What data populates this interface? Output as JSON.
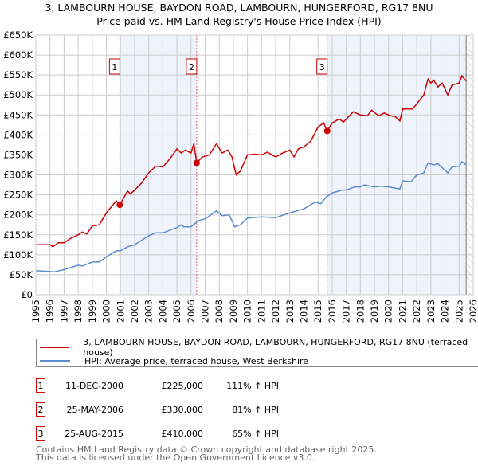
{
  "title": "3, LAMBOURN HOUSE, BAYDON ROAD, LAMBOURN, HUNGERFORD, RG17 8NU",
  "subtitle": "Price paid vs. HM Land Registry's House Price Index (HPI)",
  "colors": {
    "property": "#cc0000",
    "hpi": "#5b8bd0",
    "shade": "#eef3fc",
    "marker": "#cc0000"
  },
  "chart_data": {
    "type": "line",
    "xlim": [
      1995,
      2026
    ],
    "ylim": [
      0,
      650000
    ],
    "x_ticks": [
      "1995",
      "1996",
      "1997",
      "1998",
      "1999",
      "2000",
      "2001",
      "2002",
      "2003",
      "2004",
      "2005",
      "2006",
      "2007",
      "2008",
      "2009",
      "2010",
      "2011",
      "2012",
      "2013",
      "2014",
      "2015",
      "2016",
      "2017",
      "2018",
      "2019",
      "2020",
      "2021",
      "2022",
      "2023",
      "2024",
      "2025",
      "2026"
    ],
    "y_ticks": [
      {
        "v": 0,
        "label": "£0"
      },
      {
        "v": 50000,
        "label": "£50K"
      },
      {
        "v": 100000,
        "label": "£100K"
      },
      {
        "v": 150000,
        "label": "£150K"
      },
      {
        "v": 200000,
        "label": "£200K"
      },
      {
        "v": 250000,
        "label": "£250K"
      },
      {
        "v": 300000,
        "label": "£300K"
      },
      {
        "v": 350000,
        "label": "£350K"
      },
      {
        "v": 400000,
        "label": "£400K"
      },
      {
        "v": 450000,
        "label": "£450K"
      },
      {
        "v": 500000,
        "label": "£500K"
      },
      {
        "v": 550000,
        "label": "£550K"
      },
      {
        "v": 600000,
        "label": "£600K"
      },
      {
        "v": 650000,
        "label": "£650K"
      }
    ],
    "series": [
      {
        "name": "3, LAMBOURN HOUSE, BAYDON ROAD, LAMBOURN, HUNGERFORD, RG17 8NU (terraced house)",
        "points": [
          [
            1995,
            125000
          ],
          [
            1996,
            125000
          ],
          [
            1996.2,
            120000
          ],
          [
            1996.6,
            130000
          ],
          [
            1997,
            130000
          ],
          [
            1997.5,
            142000
          ],
          [
            1998,
            150000
          ],
          [
            1998.3,
            157000
          ],
          [
            1998.6,
            152000
          ],
          [
            1999,
            172000
          ],
          [
            1999.5,
            175000
          ],
          [
            2000,
            205000
          ],
          [
            2000.7,
            235000
          ],
          [
            2000.95,
            225000
          ],
          [
            2001.5,
            260000
          ],
          [
            2001.7,
            252000
          ],
          [
            2002,
            262000
          ],
          [
            2002.5,
            280000
          ],
          [
            2003,
            305000
          ],
          [
            2003.5,
            322000
          ],
          [
            2004,
            320000
          ],
          [
            2004.5,
            340000
          ],
          [
            2005,
            365000
          ],
          [
            2005.3,
            355000
          ],
          [
            2005.6,
            362000
          ],
          [
            2006,
            355000
          ],
          [
            2006.2,
            378000
          ],
          [
            2006.4,
            330000
          ],
          [
            2006.8,
            345000
          ],
          [
            2007.3,
            350000
          ],
          [
            2007.8,
            378000
          ],
          [
            2008.2,
            355000
          ],
          [
            2008.6,
            362000
          ],
          [
            2008.9,
            345000
          ],
          [
            2009.2,
            300000
          ],
          [
            2009.5,
            310000
          ],
          [
            2010,
            350000
          ],
          [
            2010.5,
            352000
          ],
          [
            2011,
            350000
          ],
          [
            2011.4,
            357000
          ],
          [
            2012,
            345000
          ],
          [
            2012.5,
            355000
          ],
          [
            2013,
            362000
          ],
          [
            2013.3,
            345000
          ],
          [
            2013.6,
            365000
          ],
          [
            2014,
            370000
          ],
          [
            2014.5,
            385000
          ],
          [
            2015,
            420000
          ],
          [
            2015.4,
            430000
          ],
          [
            2015.65,
            410000
          ],
          [
            2016,
            430000
          ],
          [
            2016.5,
            440000
          ],
          [
            2016.8,
            432000
          ],
          [
            2017.5,
            458000
          ],
          [
            2018,
            450000
          ],
          [
            2018.5,
            448000
          ],
          [
            2018.8,
            462000
          ],
          [
            2019.3,
            448000
          ],
          [
            2019.7,
            455000
          ],
          [
            2020,
            450000
          ],
          [
            2020.5,
            445000
          ],
          [
            2020.8,
            435000
          ],
          [
            2021,
            465000
          ],
          [
            2021.7,
            465000
          ],
          [
            2022,
            478000
          ],
          [
            2022.5,
            500000
          ],
          [
            2022.8,
            540000
          ],
          [
            2023,
            530000
          ],
          [
            2023.2,
            537000
          ],
          [
            2023.5,
            520000
          ],
          [
            2023.8,
            530000
          ],
          [
            2024.2,
            500000
          ],
          [
            2024.5,
            525000
          ],
          [
            2025,
            530000
          ],
          [
            2025.2,
            548000
          ],
          [
            2025.5,
            535000
          ]
        ]
      },
      {
        "name": "HPI: Average price, terraced house, West Berkshire",
        "points": [
          [
            1995,
            60000
          ],
          [
            1996,
            58000
          ],
          [
            1996.3,
            57000
          ],
          [
            1997,
            63000
          ],
          [
            1998,
            74000
          ],
          [
            1998.3,
            72000
          ],
          [
            1999,
            82000
          ],
          [
            1999.5,
            82000
          ],
          [
            2000,
            95000
          ],
          [
            2000.7,
            110000
          ],
          [
            2001,
            110000
          ],
          [
            2001.5,
            120000
          ],
          [
            2002,
            125000
          ],
          [
            2003,
            148000
          ],
          [
            2003.5,
            155000
          ],
          [
            2004,
            155000
          ],
          [
            2005,
            168000
          ],
          [
            2005.3,
            175000
          ],
          [
            2005.5,
            170000
          ],
          [
            2006,
            170000
          ],
          [
            2006.5,
            185000
          ],
          [
            2007,
            190000
          ],
          [
            2007.8,
            210000
          ],
          [
            2008.2,
            198000
          ],
          [
            2008.7,
            200000
          ],
          [
            2009.1,
            170000
          ],
          [
            2009.5,
            175000
          ],
          [
            2010,
            192000
          ],
          [
            2011,
            195000
          ],
          [
            2012,
            193000
          ],
          [
            2013,
            205000
          ],
          [
            2014,
            215000
          ],
          [
            2014.8,
            232000
          ],
          [
            2015.2,
            228000
          ],
          [
            2015.6,
            245000
          ],
          [
            2016,
            255000
          ],
          [
            2016.7,
            262000
          ],
          [
            2017,
            262000
          ],
          [
            2017.6,
            270000
          ],
          [
            2018,
            270000
          ],
          [
            2018.3,
            275000
          ],
          [
            2019,
            270000
          ],
          [
            2019.5,
            272000
          ],
          [
            2020,
            270000
          ],
          [
            2020.8,
            265000
          ],
          [
            2021,
            285000
          ],
          [
            2021.6,
            283000
          ],
          [
            2022,
            300000
          ],
          [
            2022.5,
            305000
          ],
          [
            2022.8,
            330000
          ],
          [
            2023.2,
            325000
          ],
          [
            2023.5,
            328000
          ],
          [
            2024.2,
            305000
          ],
          [
            2024.5,
            320000
          ],
          [
            2025,
            322000
          ],
          [
            2025.2,
            333000
          ],
          [
            2025.5,
            325000
          ]
        ]
      }
    ],
    "sales": [
      {
        "label": "1",
        "x": 2000.95,
        "y": 225000
      },
      {
        "label": "2",
        "x": 2006.4,
        "y": 330000
      },
      {
        "label": "3",
        "x": 2015.65,
        "y": 410000
      }
    ],
    "shaded_ranges": [
      [
        2000.95,
        2006.4
      ],
      [
        2015.65,
        2025.5
      ]
    ],
    "hatched_from": 2025.5
  },
  "legend": {
    "property": "3, LAMBOURN HOUSE, BAYDON ROAD, LAMBOURN, HUNGERFORD, RG17 8NU (terraced house)",
    "hpi": "HPI: Average price, terraced house, West Berkshire"
  },
  "transactions": [
    {
      "num": "1",
      "date": "11-DEC-2000",
      "price": "£225,000",
      "hpi": "111% ↑ HPI"
    },
    {
      "num": "2",
      "date": "25-MAY-2006",
      "price": "£330,000",
      "hpi": "81% ↑ HPI"
    },
    {
      "num": "3",
      "date": "25-AUG-2015",
      "price": "£410,000",
      "hpi": "65% ↑ HPI"
    }
  ],
  "footer": {
    "line1": "Contains HM Land Registry data © Crown copyright and database right 2025.",
    "line2": "This data is licensed under the Open Government Licence v3.0."
  }
}
